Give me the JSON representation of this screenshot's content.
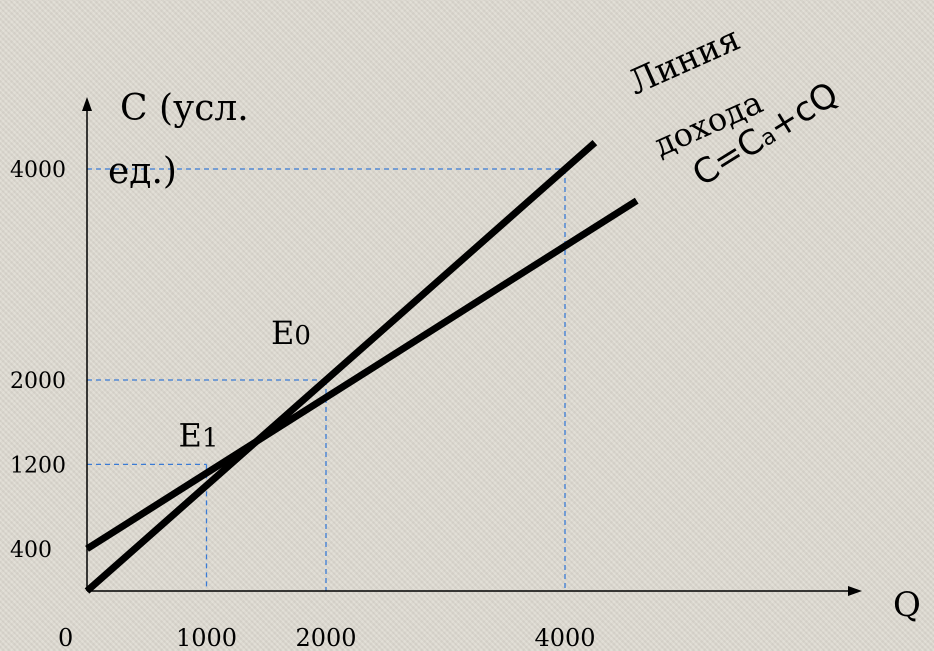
{
  "chart_data": {
    "type": "line",
    "ylabel_lines": [
      "C (усл.",
      "ед.)"
    ],
    "xlabel": "Q",
    "origin_label": "0",
    "x_ticks": [
      1000,
      2000,
      4000
    ],
    "y_ticks": [
      400,
      1200,
      2000,
      4000
    ],
    "series": [
      {
        "points": [
          [
            0,
            0
          ],
          [
            4250,
            4250
          ]
        ]
      },
      {
        "points": [
          [
            0,
            400
          ],
          [
            4600,
            3700
          ]
        ]
      }
    ],
    "guides": [
      {
        "x": 1000,
        "y": 1200
      },
      {
        "x": 2000,
        "y": 2000
      },
      {
        "x": 4000,
        "y": 4000
      }
    ],
    "point_labels": [
      {
        "base": "E",
        "sub": "0",
        "x": 2000,
        "y": 2000
      },
      {
        "base": "E",
        "sub": "1",
        "x": 1000,
        "y": 1200
      }
    ],
    "line_labels": {
      "income": [
        "Линия",
        "дохода"
      ],
      "consumption_parts": [
        "C=C",
        "a",
        "+cQ"
      ]
    },
    "colors": {
      "lines": "#000000",
      "guides": "#3a7bd5",
      "axes": "#000000"
    }
  }
}
